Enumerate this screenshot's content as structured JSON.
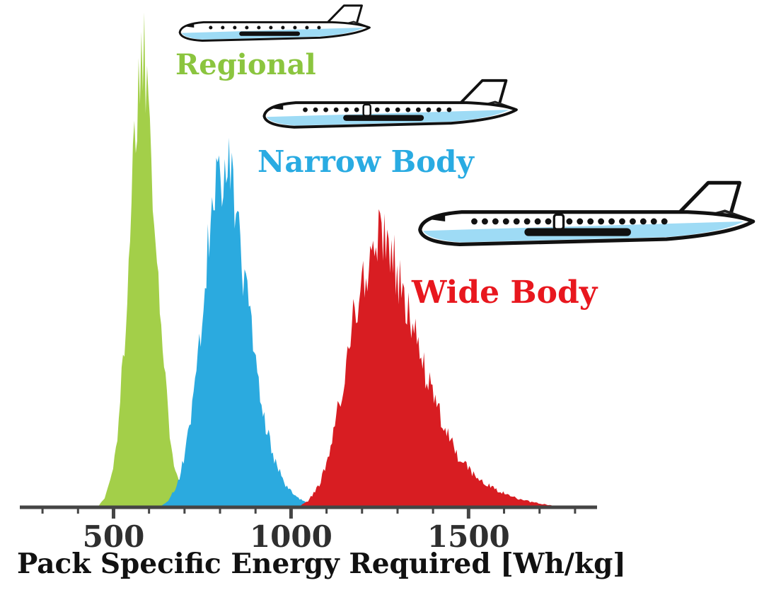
{
  "chart_data": {
    "type": "area",
    "subtype": "overlapping-probability-distributions",
    "title": "",
    "xlabel": "Pack Specific Energy Required [Wh/kg]",
    "ylabel": "",
    "x_range": [
      250,
      1850
    ],
    "x_major_ticks": [
      500,
      1000,
      1500
    ],
    "x_minor_tick_step": 100,
    "x_minor_ticks_range": [
      300,
      1800
    ],
    "grid": false,
    "y_axis_visible": false,
    "legend_position": "inline-annotations",
    "axis_color": "#454545",
    "tick_label_color": "#2f2f2f",
    "series": [
      {
        "name": "Regional",
        "color": "#a3cf49",
        "label_color": "#8bc53f",
        "peak_x": 588,
        "peak_rel_height": 1.0,
        "points": [
          [
            455,
            0
          ],
          [
            475,
            0.02
          ],
          [
            495,
            0.07
          ],
          [
            515,
            0.18
          ],
          [
            535,
            0.42
          ],
          [
            555,
            0.75
          ],
          [
            572,
            0.95
          ],
          [
            588,
            1.0
          ],
          [
            602,
            0.88
          ],
          [
            618,
            0.62
          ],
          [
            635,
            0.38
          ],
          [
            652,
            0.21
          ],
          [
            670,
            0.1
          ],
          [
            690,
            0.045
          ],
          [
            710,
            0.018
          ],
          [
            730,
            0.006
          ],
          [
            748,
            0
          ]
        ]
      },
      {
        "name": "Narrow Body",
        "color": "#2baadf",
        "label_color": "#29abe2",
        "peak_x": 815,
        "peak_rel_height": 0.76,
        "points": [
          [
            630,
            0
          ],
          [
            655,
            0.015
          ],
          [
            680,
            0.05
          ],
          [
            705,
            0.13
          ],
          [
            730,
            0.27
          ],
          [
            755,
            0.47
          ],
          [
            780,
            0.65
          ],
          [
            800,
            0.745
          ],
          [
            815,
            0.76
          ],
          [
            832,
            0.7
          ],
          [
            855,
            0.57
          ],
          [
            880,
            0.42
          ],
          [
            905,
            0.28
          ],
          [
            930,
            0.175
          ],
          [
            955,
            0.1
          ],
          [
            985,
            0.05
          ],
          [
            1015,
            0.022
          ],
          [
            1045,
            0.009
          ],
          [
            1075,
            0
          ]
        ]
      },
      {
        "name": "Wide Body",
        "color": "#d81d22",
        "label_color": "#e8171e",
        "peak_x": 1260,
        "peak_rel_height": 0.59,
        "points": [
          [
            1020,
            0
          ],
          [
            1050,
            0.015
          ],
          [
            1080,
            0.05
          ],
          [
            1110,
            0.12
          ],
          [
            1140,
            0.24
          ],
          [
            1175,
            0.4
          ],
          [
            1210,
            0.52
          ],
          [
            1240,
            0.58
          ],
          [
            1265,
            0.585
          ],
          [
            1290,
            0.54
          ],
          [
            1320,
            0.46
          ],
          [
            1355,
            0.355
          ],
          [
            1395,
            0.25
          ],
          [
            1435,
            0.165
          ],
          [
            1480,
            0.1
          ],
          [
            1525,
            0.062
          ],
          [
            1575,
            0.038
          ],
          [
            1625,
            0.022
          ],
          [
            1675,
            0.012
          ],
          [
            1725,
            0.005
          ],
          [
            1775,
            0
          ]
        ]
      }
    ]
  },
  "annotations": {
    "aircraft": [
      {
        "id": "regional",
        "label": "Regional",
        "icon": "regional-jet-icon"
      },
      {
        "id": "narrow_body",
        "label": "Narrow Body",
        "icon": "narrow-body-jet-icon"
      },
      {
        "id": "wide_body",
        "label": "Wide Body",
        "icon": "wide-body-jet-icon"
      }
    ]
  }
}
